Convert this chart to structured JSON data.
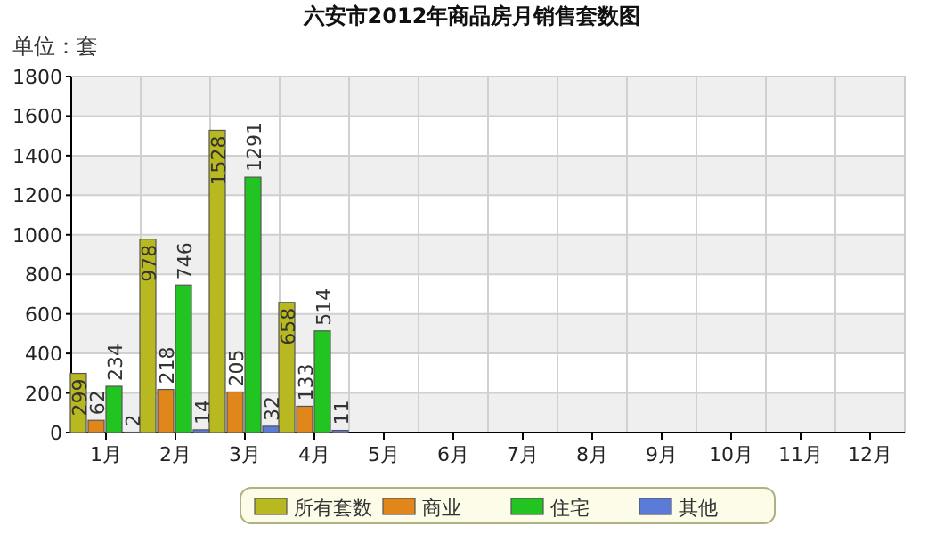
{
  "chart_data": {
    "type": "bar",
    "title": "六安市2012年商品房月销售套数图",
    "ylabel": "单位：套",
    "categories": [
      "1月",
      "2月",
      "3月",
      "4月",
      "5月",
      "6月",
      "7月",
      "8月",
      "9月",
      "10月",
      "11月",
      "12月"
    ],
    "series": [
      {
        "name": "所有套数",
        "color": "#b8b820",
        "values": [
          299,
          978,
          1528,
          658,
          null,
          null,
          null,
          null,
          null,
          null,
          null,
          null
        ]
      },
      {
        "name": "商业",
        "color": "#e0861a",
        "values": [
          62,
          218,
          205,
          133,
          null,
          null,
          null,
          null,
          null,
          null,
          null,
          null
        ]
      },
      {
        "name": "住宅",
        "color": "#22c422",
        "values": [
          234,
          746,
          1291,
          514,
          null,
          null,
          null,
          null,
          null,
          null,
          null,
          null
        ]
      },
      {
        "name": "其他",
        "color": "#5a7bd8",
        "values": [
          2,
          14,
          32,
          11,
          null,
          null,
          null,
          null,
          null,
          null,
          null,
          null
        ]
      }
    ],
    "ylim": [
      0,
      1800
    ],
    "yticks": [
      0,
      200,
      400,
      600,
      800,
      1000,
      1200,
      1400,
      1600,
      1800
    ],
    "grid": true,
    "legend": "bottom",
    "data_labels": true
  }
}
